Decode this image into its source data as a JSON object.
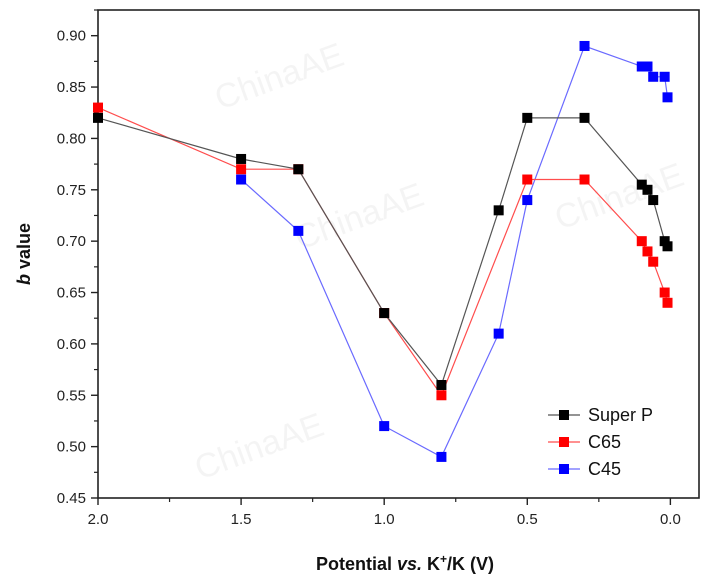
{
  "chart_data": {
    "type": "line",
    "xlabel_parts": {
      "prefix": "Potential ",
      "italic": "vs.",
      "ion": " K",
      "sup": "+",
      "suffix": "/K (V)"
    },
    "ylabel_parts": {
      "italic": "b",
      "rest": " value"
    },
    "xlim": [
      2.0,
      -0.1
    ],
    "ylim": [
      0.45,
      0.925
    ],
    "xticks": [
      2.0,
      1.5,
      1.0,
      0.5,
      0.0
    ],
    "xtick_labels": [
      "2.0",
      "1.5",
      "1.0",
      "0.5",
      "0.0"
    ],
    "yticks": [
      0.45,
      0.5,
      0.55,
      0.6,
      0.65,
      0.7,
      0.75,
      0.8,
      0.85,
      0.9
    ],
    "ytick_labels": [
      "0.45",
      "0.50",
      "0.55",
      "0.60",
      "0.65",
      "0.70",
      "0.75",
      "0.80",
      "0.85",
      "0.90"
    ],
    "legend_position": "bottom-right",
    "series": [
      {
        "name": "Super P",
        "color": "#000000",
        "line_color": "#555555",
        "points": [
          [
            2.0,
            0.82
          ],
          [
            1.5,
            0.78
          ],
          [
            1.3,
            0.77
          ],
          [
            1.0,
            0.63
          ],
          [
            0.8,
            0.56
          ],
          [
            0.6,
            0.73
          ],
          [
            0.5,
            0.82
          ],
          [
            0.3,
            0.82
          ],
          [
            0.1,
            0.755
          ],
          [
            0.08,
            0.75
          ],
          [
            0.06,
            0.74
          ],
          [
            0.02,
            0.7
          ],
          [
            0.01,
            0.695
          ]
        ]
      },
      {
        "name": "C65",
        "color": "#ff0000",
        "line_color": "#ff4d4d",
        "points": [
          [
            2.0,
            0.83
          ],
          [
            1.5,
            0.77
          ],
          [
            1.3,
            0.77
          ],
          [
            1.0,
            0.63
          ],
          [
            0.8,
            0.55
          ],
          [
            0.5,
            0.76
          ],
          [
            0.3,
            0.76
          ],
          [
            0.1,
            0.7
          ],
          [
            0.08,
            0.69
          ],
          [
            0.06,
            0.68
          ],
          [
            0.02,
            0.65
          ],
          [
            0.01,
            0.64
          ]
        ]
      },
      {
        "name": "C45",
        "color": "#0000ff",
        "line_color": "#6a6aff",
        "points": [
          [
            1.5,
            0.76
          ],
          [
            1.3,
            0.71
          ],
          [
            1.0,
            0.52
          ],
          [
            0.8,
            0.49
          ],
          [
            0.6,
            0.61
          ],
          [
            0.5,
            0.74
          ],
          [
            0.3,
            0.89
          ],
          [
            0.1,
            0.87
          ],
          [
            0.08,
            0.87
          ],
          [
            0.06,
            0.86
          ],
          [
            0.02,
            0.86
          ],
          [
            0.01,
            0.84
          ]
        ]
      }
    ]
  }
}
